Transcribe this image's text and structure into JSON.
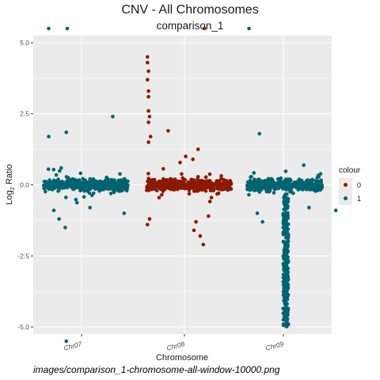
{
  "chart_data": {
    "type": "scatter",
    "title": "CNV - All Chromosomes",
    "subtitle": "comparison_1",
    "xlabel": "Chromosome",
    "ylabel": "Log",
    "ylabel_sub": "2",
    "ylabel_rest": " Ratio",
    "ylim": [
      -5.25,
      5.25
    ],
    "y_ticks": [
      {
        "value": 5.0,
        "label": "5.0"
      },
      {
        "value": 2.5,
        "label": "2.5"
      },
      {
        "value": 0.0,
        "label": "0.0"
      },
      {
        "value": -2.5,
        "label": "-2.5"
      },
      {
        "value": -5.0,
        "label": "-5.0"
      }
    ],
    "categories": [
      "Chr07",
      "Chr08",
      "Chr09"
    ],
    "grid": true,
    "legend": {
      "title": "colour",
      "placement": "right",
      "entries": [
        {
          "label": "0",
          "color": "#8b1a00"
        },
        {
          "label": "1",
          "color": "#006470"
        }
      ]
    },
    "colors": {
      "panel": "#ebebeb",
      "grid": "#ffffff",
      "series_0": "#8b1a00",
      "series_1": "#006470"
    },
    "series": [
      {
        "name": "1",
        "chromosome": "Chr07",
        "position_range": [
          0.0,
          0.82
        ],
        "baseline_spread": 0.35,
        "notable_points": [
          {
            "x": 0.05,
            "y": 5.5
          },
          {
            "x": 0.23,
            "y": 5.5
          },
          {
            "x": 0.05,
            "y": 1.7
          },
          {
            "x": 0.22,
            "y": 1.85
          },
          {
            "x": 0.67,
            "y": 2.4
          },
          {
            "x": 0.1,
            "y": -0.9
          },
          {
            "x": 0.21,
            "y": -1.5
          },
          {
            "x": 0.15,
            "y": -1.2
          },
          {
            "x": 0.45,
            "y": -0.8
          },
          {
            "x": 0.78,
            "y": -1.0
          },
          {
            "x": 0.22,
            "y": -5.5
          }
        ]
      },
      {
        "name": "0",
        "chromosome": "Chr08",
        "position_range": [
          0.0,
          0.82
        ],
        "baseline_spread": 0.35,
        "notable_points": [
          {
            "x": 0.01,
            "y": 4.5
          },
          {
            "x": 0.01,
            "y": 4.3
          },
          {
            "x": 0.02,
            "y": 4.0
          },
          {
            "x": 0.01,
            "y": 3.7
          },
          {
            "x": 0.02,
            "y": 3.3
          },
          {
            "x": 0.02,
            "y": 3.1
          },
          {
            "x": 0.02,
            "y": 2.6
          },
          {
            "x": 0.03,
            "y": 2.4
          },
          {
            "x": 0.02,
            "y": 2.2
          },
          {
            "x": 0.04,
            "y": 1.7
          },
          {
            "x": 0.02,
            "y": 1.5
          },
          {
            "x": 0.21,
            "y": 1.9
          },
          {
            "x": 0.5,
            "y": 1.25
          },
          {
            "x": 0.38,
            "y": 1.0
          },
          {
            "x": 0.45,
            "y": 0.9
          },
          {
            "x": 0.56,
            "y": 5.5
          },
          {
            "x": 0.01,
            "y": -1.4
          },
          {
            "x": 0.03,
            "y": -1.2
          },
          {
            "x": 0.46,
            "y": -1.6
          },
          {
            "x": 0.52,
            "y": -1.8
          },
          {
            "x": 0.55,
            "y": -2.1
          },
          {
            "x": 0.48,
            "y": -1.3
          },
          {
            "x": 0.6,
            "y": -1.1
          }
        ]
      },
      {
        "name": "1",
        "chromosome": "Chr09",
        "position_range": [
          0.0,
          0.92
        ],
        "baseline_spread": 0.35,
        "notable_points": [
          {
            "x": 0.02,
            "y": 5.5
          },
          {
            "x": 0.12,
            "y": 1.8
          },
          {
            "x": 0.1,
            "y": -1.0
          },
          {
            "x": 0.15,
            "y": -1.3
          },
          {
            "x": 0.35,
            "y": -1.5
          },
          {
            "x": 0.6,
            "y": -0.8
          },
          {
            "x": 0.86,
            "y": -0.9
          }
        ],
        "deletion_region": {
          "x_range": [
            0.35,
            0.4
          ],
          "y_min": -5.0
        }
      }
    ]
  },
  "caption": "images/comparison_1-chromosome-all-window-10000.png"
}
